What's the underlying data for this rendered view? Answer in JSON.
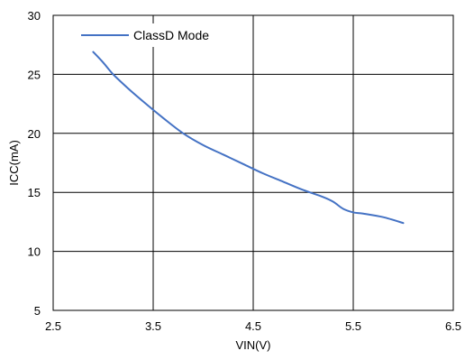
{
  "chart_data": {
    "type": "line",
    "title": "",
    "xlabel": "VIN(V)",
    "ylabel": "ICC(mA)",
    "xlim": [
      2.5,
      6.5
    ],
    "ylim": [
      5,
      30
    ],
    "xticks": [
      2.5,
      3.5,
      4.5,
      5.5,
      6.5
    ],
    "xtick_labels": [
      "2.5",
      "3.5",
      "4.5",
      "5.5",
      "6.5"
    ],
    "yticks": [
      5,
      10,
      15,
      20,
      25,
      30
    ],
    "ytick_labels": [
      "5",
      "10",
      "15",
      "20",
      "25",
      "30"
    ],
    "grid": true,
    "legend_position": "top-left",
    "series": [
      {
        "name": "ClassD Mode",
        "color": "#4472c4",
        "x": [
          2.9,
          3.0,
          3.1,
          3.25,
          3.4,
          3.6,
          3.8,
          4.0,
          4.2,
          4.4,
          4.6,
          4.8,
          5.0,
          5.2,
          5.3,
          5.4,
          5.5,
          5.6,
          5.8,
          6.0
        ],
        "y": [
          26.9,
          26.0,
          25.0,
          23.8,
          22.7,
          21.3,
          20.0,
          19.0,
          18.2,
          17.4,
          16.6,
          15.9,
          15.2,
          14.6,
          14.2,
          13.6,
          13.3,
          13.2,
          12.9,
          12.4
        ]
      }
    ]
  }
}
